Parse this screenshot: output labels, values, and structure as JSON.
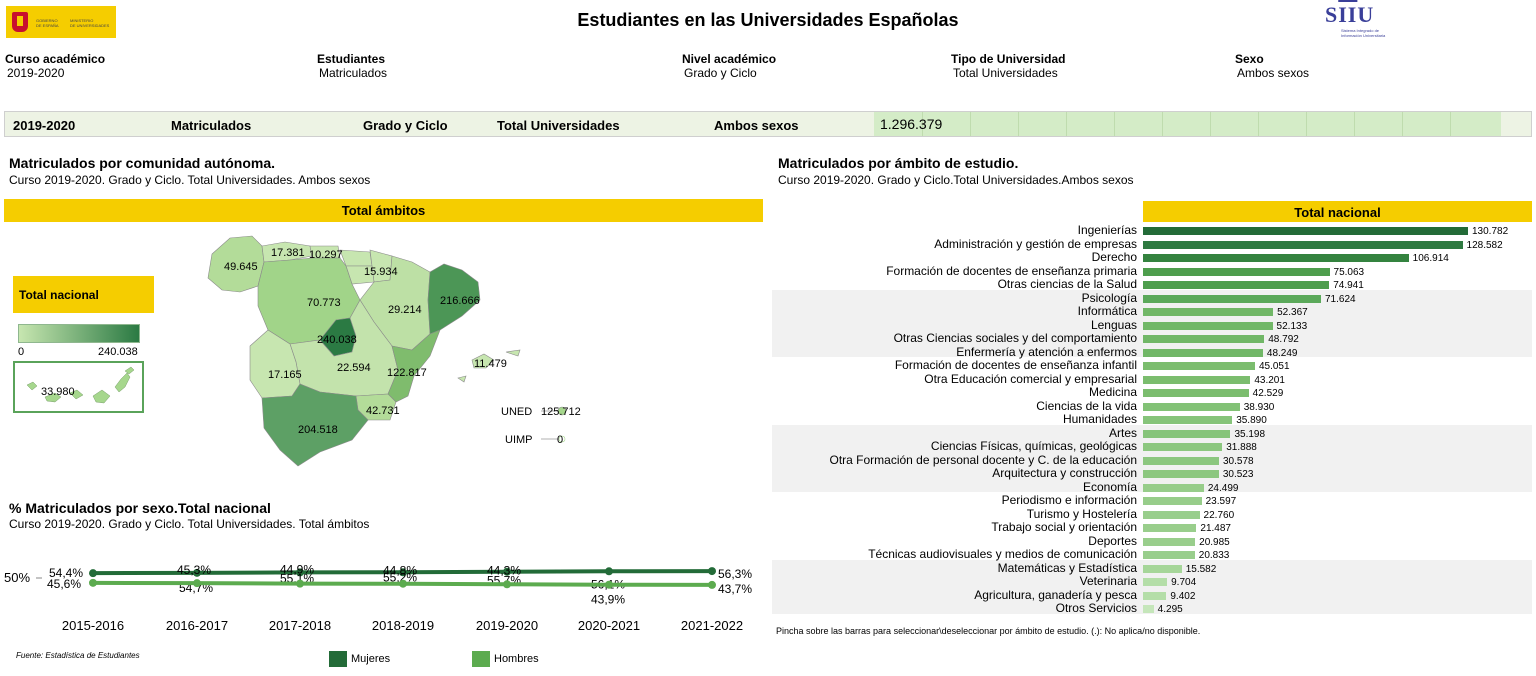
{
  "header": {
    "title": "Estudiantes en las Universidades Españolas",
    "logo_left": "GOBIERNO DE ESPAÑA · MINISTERIO DE UNIVERSIDADES",
    "logo_right_main": "SIIU",
    "logo_right_sub": "Sistema Integrado de Información Universitaria"
  },
  "filters": [
    {
      "label": "Curso académico",
      "value": "2019-2020"
    },
    {
      "label": "Estudiantes",
      "value": "Matriculados"
    },
    {
      "label": "Nivel académico",
      "value": "Grado y Ciclo"
    },
    {
      "label": "Tipo de Universidad",
      "value": "Total Universidades"
    },
    {
      "label": "Sexo",
      "value": "Ambos sexos"
    }
  ],
  "summary": {
    "curso": "2019-2020",
    "estudiantes": "Matriculados",
    "nivel": "Grado y Ciclo",
    "tipo": "Total Universidades",
    "sexo": "Ambos sexos",
    "total": "1.296.379"
  },
  "map_section": {
    "title": "Matriculados por comunidad autónoma.",
    "subtitle": "Curso 2019-2020. Grado y Ciclo. Total Universidades. Ambos sexos",
    "bar_label": "Total ámbitos",
    "total_label": "Total nacional",
    "scale_min": "0",
    "scale_max": "240.038",
    "colors": {
      "low": "#c7e6b0",
      "high": "#2b7a43"
    },
    "regions": [
      {
        "name": "Galicia",
        "value": "49.645"
      },
      {
        "name": "Asturias",
        "value": "17.381"
      },
      {
        "name": "Cantabria",
        "value": "10.297"
      },
      {
        "name": "País Vasco",
        "value": "15.934"
      },
      {
        "name": "Castilla y León",
        "value": "70.773"
      },
      {
        "name": "Aragón",
        "value": "29.214"
      },
      {
        "name": "Cataluña",
        "value": "216.666"
      },
      {
        "name": "Madrid",
        "value": "240.038"
      },
      {
        "name": "Castilla-La Mancha",
        "value": "22.594"
      },
      {
        "name": "Extremadura",
        "value": "17.165"
      },
      {
        "name": "C. Valenciana",
        "value": "122.817"
      },
      {
        "name": "Baleares",
        "value": "11.479"
      },
      {
        "name": "Murcia",
        "value": "42.731"
      },
      {
        "name": "Andalucía",
        "value": "204.518"
      },
      {
        "name": "Canarias",
        "value": "33.980"
      }
    ],
    "extra": [
      {
        "label": "UNED",
        "value": "125.712"
      },
      {
        "label": "UIMP",
        "value": "0"
      }
    ]
  },
  "sex_section": {
    "title": "% Matriculados por sexo.Total nacional",
    "subtitle": "Curso 2019-2020. Grado y Ciclo. Total Universidades. Total ámbitos",
    "y_tick": "50%",
    "source": "Fuente: Estadística de Estudiantes",
    "colors": {
      "mujeres": "#236b38",
      "hombres": "#5cab4f"
    }
  },
  "ambito_section": {
    "title": "Matriculados por ámbito de estudio.",
    "subtitle": "Curso 2019-2020. Grado y Ciclo.Total Universidades.Ambos sexos",
    "bar_label": "Total nacional",
    "footer": "Pincha sobre las barras para seleccionar\\deseleccionar por ámbito de estudio. (.): No aplica/no disponible."
  },
  "chart_data": [
    {
      "type": "line",
      "title": "% Matriculados por sexo.Total nacional",
      "x": [
        "2015-2016",
        "2016-2017",
        "2017-2018",
        "2018-2019",
        "2019-2020",
        "2020-2021",
        "2021-2022"
      ],
      "series": [
        {
          "name": "Mujeres",
          "values": [
            54.4,
            54.7,
            55.1,
            55.2,
            55.7,
            56.1,
            56.3
          ],
          "labels": [
            "54,4%",
            "54,7%",
            "55,1%",
            "55,2%",
            "55,7%",
            "56,1%",
            "56,3%"
          ]
        },
        {
          "name": "Hombres",
          "values": [
            45.6,
            45.3,
            44.9,
            44.8,
            44.3,
            43.9,
            43.7
          ],
          "labels": [
            "45,6%",
            "45,3%",
            "44,9%",
            "44,8%",
            "44,3%",
            "43,9%",
            "43,7%"
          ]
        }
      ]
    },
    {
      "type": "bar",
      "title": "Total nacional",
      "categories": [
        "Ingenierías",
        "Administración y gestión de empresas",
        "Derecho",
        "Formación de docentes de enseñanza primaria",
        "Otras ciencias de la Salud",
        "Psicología",
        "Informática",
        "Lenguas",
        "Otras Ciencias sociales y del comportamiento",
        "Enfermería y atención a enfermos",
        "Formación de docentes de enseñanza infantil",
        "Otra Educación comercial y empresarial",
        "Medicina",
        "Ciencias de la vida",
        "Humanidades",
        "Artes",
        "Ciencias Físicas, químicas, geológicas",
        "Otra Formación de personal docente y C. de la educación",
        "Arquitectura y construcción",
        "Economía",
        "Periodismo e información",
        "Turismo y Hostelería",
        "Trabajo social y orientación",
        "Deportes",
        "Técnicas audiovisuales y medios de comunicación",
        "Matemáticas y Estadística",
        "Veterinaria",
        "Agricultura, ganadería y pesca",
        "Otros Servicios"
      ],
      "values": [
        130782,
        128582,
        106914,
        75063,
        74941,
        71624,
        52367,
        52133,
        48792,
        48249,
        45051,
        43201,
        42529,
        38930,
        35890,
        35198,
        31888,
        30578,
        30523,
        24499,
        23597,
        22760,
        21487,
        20985,
        20833,
        15582,
        9704,
        9402,
        4295
      ],
      "labels": [
        "130.782",
        "128.582",
        "106.914",
        "75.063",
        "74.941",
        "71.624",
        "52.367",
        "52.133",
        "48.792",
        "48.249",
        "45.051",
        "43.201",
        "42.529",
        "38.930",
        "35.890",
        "35.198",
        "31.888",
        "30.578",
        "30.523",
        "24.499",
        "23.597",
        "22.760",
        "21.487",
        "20.985",
        "20.833",
        "15.582",
        "9.704",
        "9.402",
        "4.295"
      ]
    }
  ]
}
